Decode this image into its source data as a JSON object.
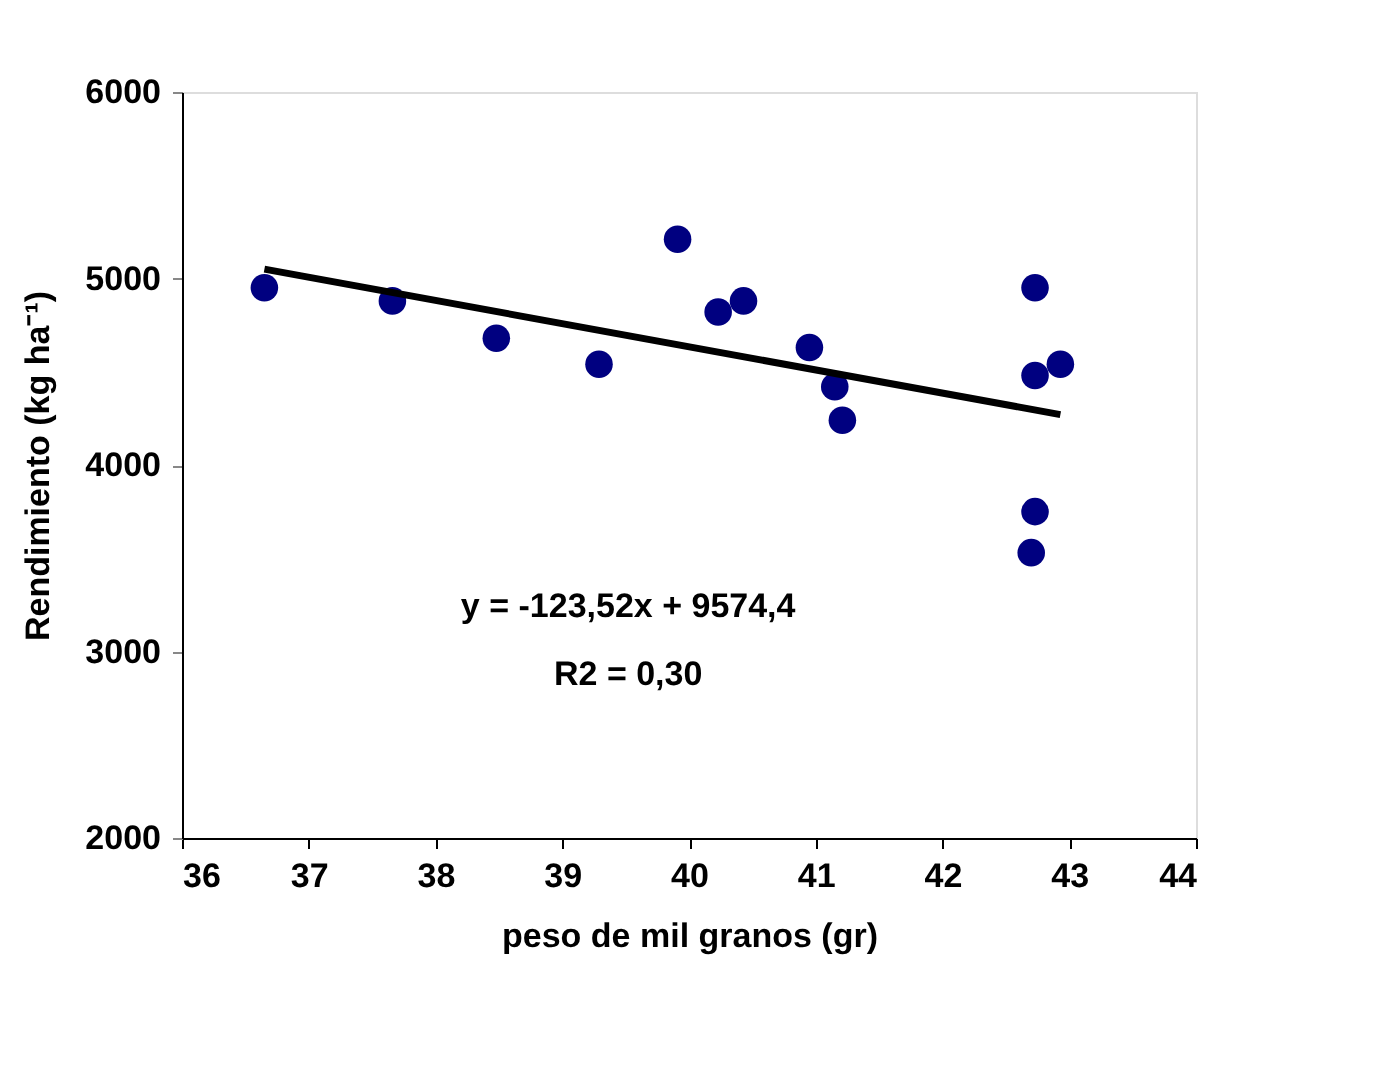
{
  "chart_data": {
    "type": "scatter",
    "xlabel": "peso de mil granos (gr)",
    "ylabel": "Rendimiento (kg ha⁻¹)",
    "xlim": [
      36,
      44
    ],
    "xticks": [
      36,
      37,
      38,
      39,
      40,
      41,
      42,
      43,
      44
    ],
    "ylim": [
      2000,
      6000
    ],
    "yticks": [
      2000,
      3000,
      4000,
      5000,
      6000
    ],
    "grid": false,
    "series": [
      {
        "marker": "circle",
        "color": "#000080",
        "x": [
          36.65,
          37.66,
          38.48,
          39.29,
          39.91,
          40.23,
          40.43,
          40.95,
          41.15,
          41.21,
          42.73,
          42.73,
          42.93,
          42.73,
          42.7
        ],
        "values": [
          4950,
          4880,
          4680,
          4540,
          5210,
          4820,
          4880,
          4630,
          4420,
          4240,
          4950,
          4480,
          4540,
          3750,
          3530
        ]
      },
      {
        "type": "line",
        "color": "#000000",
        "line_style": "solid",
        "x": [
          36.65,
          42.93
        ],
        "values": [
          5050,
          4270
        ]
      }
    ],
    "annotations": [
      "y = -123,52x + 9574,4",
      "R2 = 0,30"
    ]
  }
}
